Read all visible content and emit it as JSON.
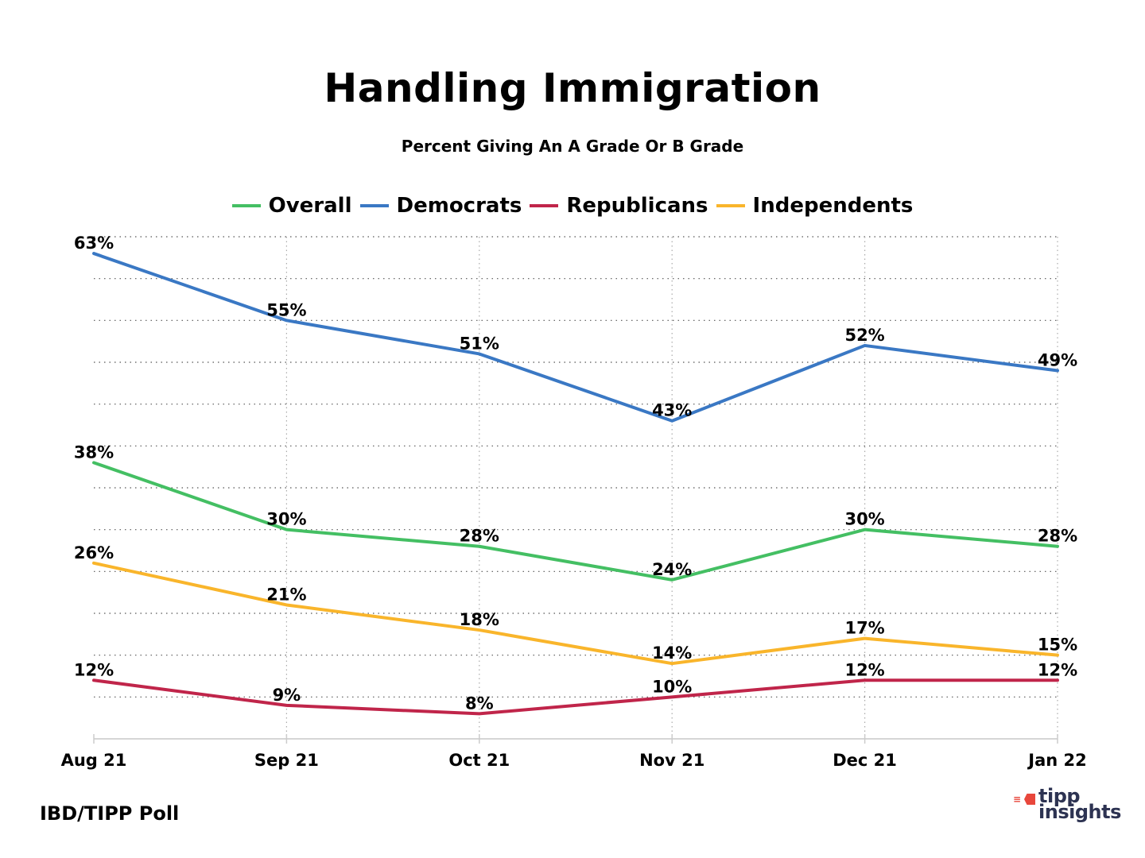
{
  "chart_data": {
    "type": "line",
    "title": "Handling Immigration",
    "subtitle": "Percent Giving An A Grade Or B Grade",
    "xlabel": "",
    "ylabel": "",
    "categories": [
      "Aug 21",
      "Sep 21",
      "Oct 21",
      "Nov 21",
      "Dec 21",
      "Jan 22"
    ],
    "ylim": [
      5,
      65
    ],
    "grid": true,
    "legend_position": "top",
    "series": [
      {
        "name": "Overall",
        "color": "#44bf63",
        "values": [
          38,
          30,
          28,
          24,
          30,
          28
        ],
        "labels": [
          "38%",
          "30%",
          "28%",
          "24%",
          "30%",
          "28%"
        ]
      },
      {
        "name": "Democrats",
        "color": "#3a78c4",
        "values": [
          63,
          55,
          51,
          43,
          52,
          49
        ],
        "labels": [
          "63%",
          "55%",
          "51%",
          "43%",
          "52%",
          "49%"
        ]
      },
      {
        "name": "Republicans",
        "color": "#c0254a",
        "values": [
          12,
          9,
          8,
          10,
          12,
          12
        ],
        "labels": [
          "12%",
          "9%",
          "8%",
          "10%",
          "12%",
          "12%"
        ]
      },
      {
        "name": "Independents",
        "color": "#f9b52b",
        "values": [
          26,
          21,
          18,
          14,
          17,
          15
        ],
        "labels": [
          "26%",
          "21%",
          "18%",
          "14%",
          "17%",
          "15%"
        ]
      }
    ]
  },
  "footer": {
    "source": "IBD/TIPP Poll",
    "logo_line1": "tipp",
    "logo_line2": "insights"
  }
}
